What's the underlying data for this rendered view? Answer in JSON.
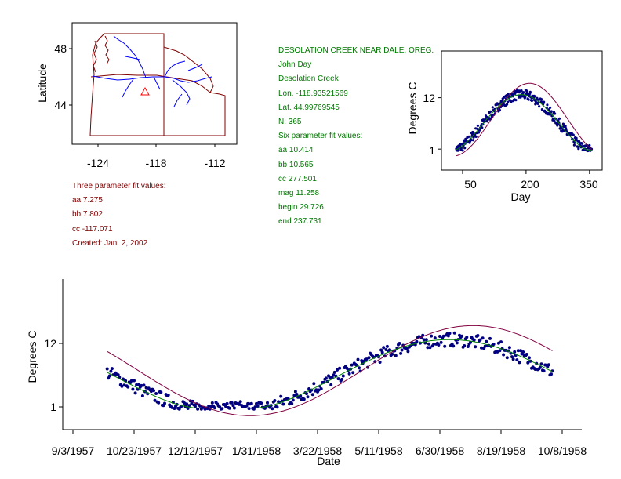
{
  "colors": {
    "maroon": "#800000",
    "green": "#007800",
    "blue_river": "#0000ff",
    "dots": "#000080",
    "fit_three": "#800040",
    "fit_six": "#008000"
  },
  "station_info": {
    "station_name": "DESOLATION CREEK NEAR DALE, OREG.",
    "basin": "John Day",
    "stream": "Desolation Creek",
    "lon": "Lon. -118.93521569",
    "lat": "Lat. 44.99769545",
    "n": "N: 365",
    "six_header": "Six parameter fit values:",
    "six_aa": "aa 10.414",
    "six_bb": "bb 10.565",
    "six_cc": "cc 277.501",
    "six_mag": "mag 11.258",
    "six_begin": "begin 29.726",
    "six_end": "end 237.731"
  },
  "three_param": {
    "header": "Three parameter fit values:",
    "aa": "aa 7.275",
    "bb": "bb 7.802",
    "cc": "cc -117.071",
    "created": "Created:   Jan. 2, 2002"
  },
  "chart_data": [
    {
      "type": "map",
      "ylabel": "Latitude",
      "x_ticks": [
        "-124",
        "-118",
        "-112"
      ],
      "y_ticks": [
        "48",
        "44"
      ],
      "xlim": [
        -126.5,
        -110.5
      ],
      "ylim": [
        41.8,
        49.6
      ],
      "station_marker": {
        "lon": -118.94,
        "lat": 45.0,
        "shape": "triangle"
      }
    },
    {
      "type": "scatter",
      "xlabel": "Day",
      "ylabel": "Degrees C",
      "x_ticks": [
        "50",
        "200",
        "350"
      ],
      "y_ticks": [
        "1",
        "12"
      ],
      "xlim": [
        0,
        380
      ],
      "ylim": [
        -3.5,
        22
      ],
      "series": [
        {
          "name": "observations",
          "style": "dots",
          "x_range": [
            35,
            355
          ]
        },
        {
          "name": "three parameter fit",
          "aa": 7.275,
          "bb": 7.802,
          "cc": -117.071
        },
        {
          "name": "six parameter fit",
          "aa": 10.414,
          "bb": 10.565,
          "cc": 277.501,
          "mag": 11.258,
          "begin": 29.726,
          "end": 237.731
        }
      ]
    },
    {
      "type": "scatter",
      "xlabel": "Date",
      "ylabel": "Degrees C",
      "x_ticks": [
        "9/3/1957",
        "10/23/1957",
        "12/12/1957",
        "1/31/1958",
        "3/22/1958",
        "5/11/1958",
        "6/30/1958",
        "8/19/1958",
        "10/8/1958"
      ],
      "y_ticks": [
        "1",
        "12"
      ],
      "ylim": [
        -3.5,
        22
      ],
      "series": [
        {
          "name": "observations",
          "style": "dots",
          "date_range": [
            "10/1/1957",
            "9/30/1958"
          ]
        },
        {
          "name": "three parameter fit"
        },
        {
          "name": "six parameter fit"
        }
      ]
    }
  ]
}
